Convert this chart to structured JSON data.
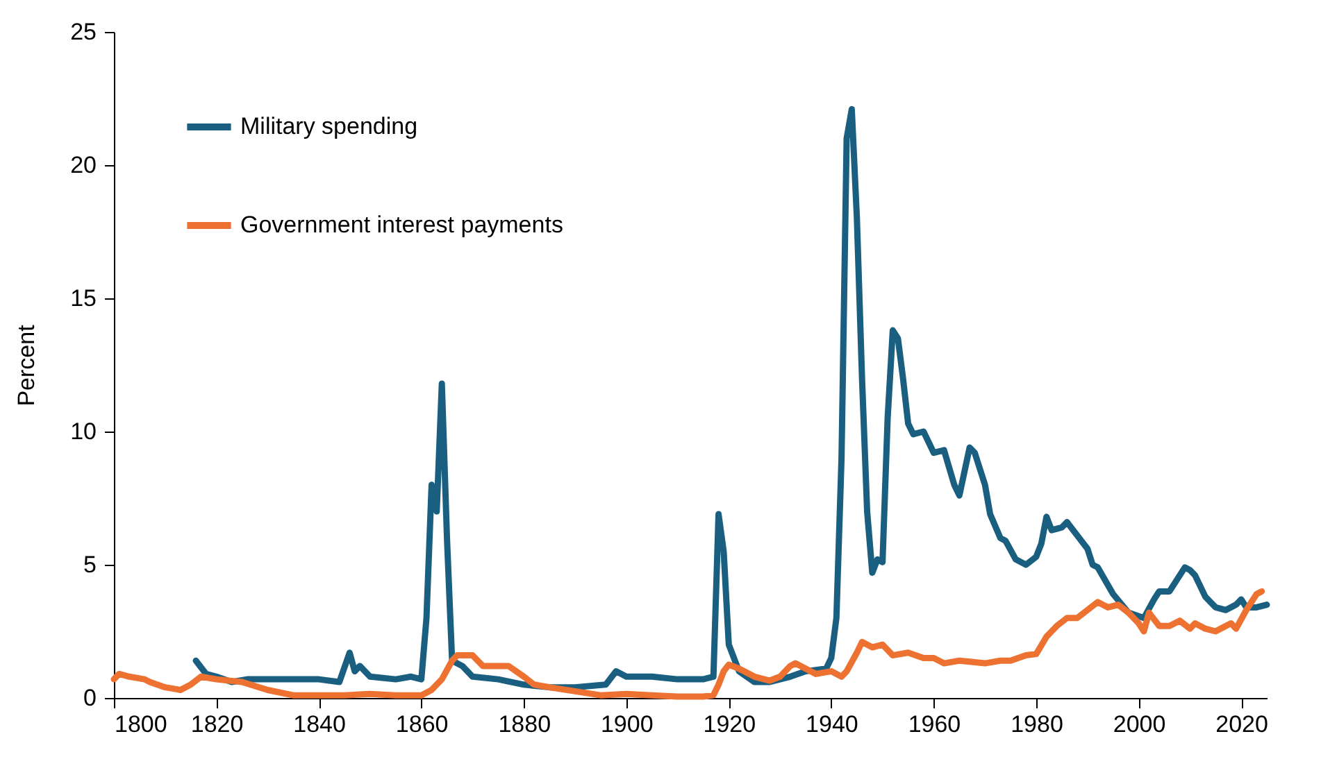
{
  "chart_data": {
    "type": "line",
    "ylabel": "Percent",
    "xlim": [
      1800,
      2025
    ],
    "xticks": [
      1800,
      1820,
      1840,
      1860,
      1880,
      1900,
      1920,
      1940,
      1960,
      1980,
      2000,
      2020
    ],
    "ylim": [
      0,
      25
    ],
    "yticks": [
      0,
      5,
      10,
      15,
      20,
      25
    ],
    "grid": false,
    "legend": "top left",
    "line_style": "solid",
    "marker": "none",
    "series": [
      {
        "name": "Military spending",
        "color": "#1a5f80",
        "x": [
          1816,
          1818,
          1820,
          1823,
          1826,
          1830,
          1835,
          1840,
          1844,
          1846,
          1847,
          1848,
          1850,
          1855,
          1858,
          1860,
          1861,
          1862,
          1863,
          1864,
          1865,
          1866,
          1868,
          1870,
          1875,
          1880,
          1885,
          1890,
          1896,
          1898,
          1900,
          1905,
          1910,
          1915,
          1917,
          1918,
          1919,
          1920,
          1922,
          1925,
          1928,
          1932,
          1935,
          1939,
          1940,
          1941,
          1942,
          1943,
          1944,
          1945,
          1946,
          1947,
          1948,
          1949,
          1950,
          1951,
          1952,
          1953,
          1954,
          1955,
          1956,
          1958,
          1960,
          1962,
          1964,
          1965,
          1967,
          1968,
          1970,
          1971,
          1973,
          1974,
          1976,
          1978,
          1980,
          1981,
          1982,
          1983,
          1985,
          1986,
          1988,
          1990,
          1991,
          1992,
          1995,
          1998,
          2001,
          2003,
          2004,
          2006,
          2008,
          2009,
          2010,
          2011,
          2013,
          2015,
          2017,
          2019,
          2020,
          2021,
          2023,
          2025
        ],
        "values": [
          1.4,
          0.9,
          0.8,
          0.6,
          0.7,
          0.7,
          0.7,
          0.7,
          0.6,
          1.7,
          1.0,
          1.2,
          0.8,
          0.7,
          0.8,
          0.7,
          3.0,
          8.0,
          7.0,
          11.8,
          6.0,
          1.4,
          1.2,
          0.8,
          0.7,
          0.5,
          0.4,
          0.4,
          0.5,
          1.0,
          0.8,
          0.8,
          0.7,
          0.7,
          0.8,
          6.9,
          5.5,
          2.0,
          1.0,
          0.6,
          0.6,
          0.8,
          1.0,
          1.1,
          1.5,
          3.0,
          9.0,
          21.0,
          22.1,
          18.0,
          12.0,
          7.0,
          4.7,
          5.2,
          5.1,
          10.5,
          13.8,
          13.5,
          12.0,
          10.3,
          9.9,
          10.0,
          9.2,
          9.3,
          8.0,
          7.6,
          9.4,
          9.2,
          8.0,
          6.9,
          6.0,
          5.9,
          5.2,
          5.0,
          5.3,
          5.8,
          6.8,
          6.3,
          6.4,
          6.6,
          6.1,
          5.6,
          5.0,
          4.9,
          3.9,
          3.2,
          3.0,
          3.7,
          4.0,
          4.0,
          4.6,
          4.9,
          4.8,
          4.6,
          3.8,
          3.4,
          3.3,
          3.5,
          3.7,
          3.4,
          3.4,
          3.5
        ]
      },
      {
        "name": "Government interest payments",
        "color": "#ed7232",
        "x": [
          1800,
          1801,
          1803,
          1806,
          1807,
          1810,
          1813,
          1815,
          1817,
          1820,
          1825,
          1830,
          1835,
          1840,
          1845,
          1850,
          1855,
          1860,
          1862,
          1864,
          1866,
          1867,
          1870,
          1872,
          1875,
          1877,
          1880,
          1882,
          1885,
          1890,
          1895,
          1900,
          1905,
          1910,
          1915,
          1917,
          1918,
          1919,
          1920,
          1922,
          1925,
          1928,
          1930,
          1932,
          1933,
          1935,
          1937,
          1940,
          1942,
          1943,
          1945,
          1946,
          1948,
          1950,
          1952,
          1955,
          1958,
          1960,
          1962,
          1965,
          1970,
          1973,
          1975,
          1978,
          1980,
          1982,
          1984,
          1986,
          1988,
          1990,
          1992,
          1994,
          1996,
          1998,
          2000,
          2001,
          2002,
          2004,
          2006,
          2008,
          2010,
          2011,
          2013,
          2015,
          2017,
          2018,
          2019,
          2021,
          2023,
          2024
        ],
        "values": [
          0.7,
          0.9,
          0.8,
          0.7,
          0.6,
          0.4,
          0.3,
          0.5,
          0.8,
          0.7,
          0.6,
          0.3,
          0.1,
          0.1,
          0.1,
          0.15,
          0.1,
          0.1,
          0.3,
          0.7,
          1.4,
          1.6,
          1.6,
          1.2,
          1.2,
          1.2,
          0.8,
          0.5,
          0.4,
          0.25,
          0.1,
          0.15,
          0.1,
          0.05,
          0.05,
          0.1,
          0.5,
          1.0,
          1.25,
          1.1,
          0.8,
          0.65,
          0.8,
          1.2,
          1.3,
          1.1,
          0.9,
          1.0,
          0.8,
          1.0,
          1.7,
          2.1,
          1.9,
          2.0,
          1.6,
          1.7,
          1.5,
          1.5,
          1.3,
          1.4,
          1.3,
          1.4,
          1.4,
          1.6,
          1.65,
          2.3,
          2.7,
          3.0,
          3.0,
          3.3,
          3.6,
          3.4,
          3.5,
          3.2,
          2.8,
          2.5,
          3.2,
          2.7,
          2.7,
          2.9,
          2.6,
          2.8,
          2.6,
          2.5,
          2.7,
          2.8,
          2.6,
          3.3,
          3.9,
          4.0
        ]
      }
    ]
  }
}
